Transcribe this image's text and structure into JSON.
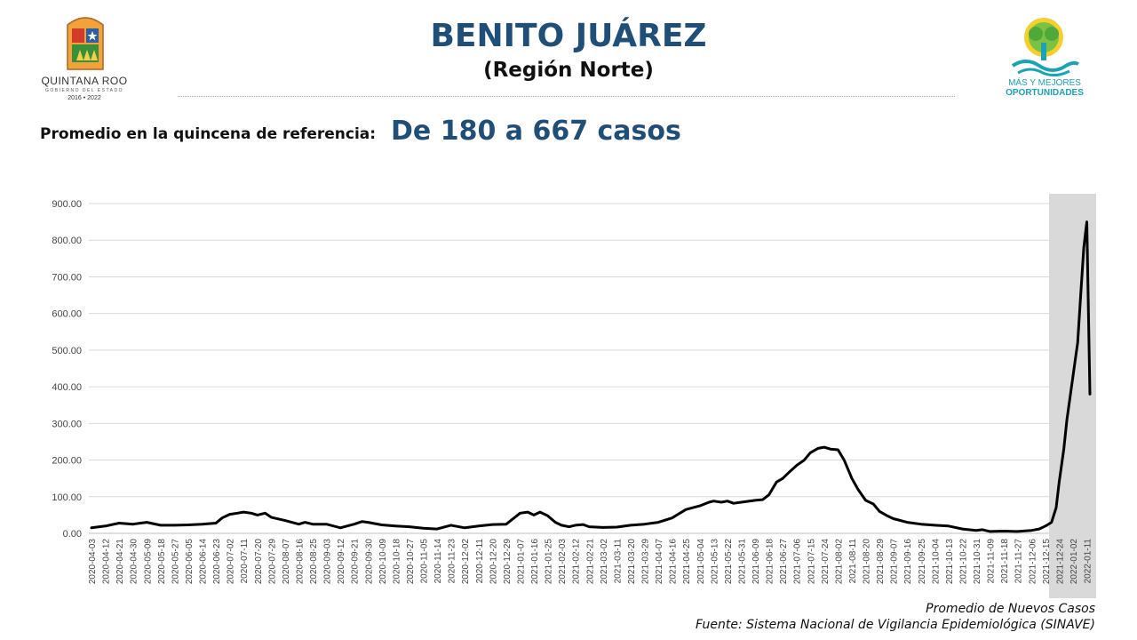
{
  "header": {
    "title": "BENITO JUÁREZ",
    "subtitle": "(Región Norte)",
    "left_logo": {
      "state": "QUINTANA ROO",
      "gov": "GOBIERNO DEL ESTADO",
      "years": "2016 • 2022"
    },
    "right_logo": {
      "line1": "MÁS Y MEJORES",
      "line2": "OPORTUNIDADES"
    }
  },
  "summary": {
    "label": "Promedio en la quincena de referencia:",
    "value": "De 180 a 667 casos"
  },
  "footer": {
    "caption": "Promedio de Nuevos Casos",
    "source": "Fuente: Sistema Nacional de Vigilancia Epidemiológica (SINAVE)"
  },
  "colors": {
    "title": "#1f4e79",
    "line": "#000000",
    "highlight": "#d9d9d9",
    "grid": "#d9d9d9",
    "logo_teal": "#1aa3b8"
  },
  "chart_data": {
    "type": "line",
    "title": "",
    "xlabel": "",
    "ylabel": "",
    "ylim": [
      0,
      900
    ],
    "grid": true,
    "y_ticks": [
      "0.00",
      "100.00",
      "200.00",
      "300.00",
      "400.00",
      "500.00",
      "600.00",
      "700.00",
      "800.00",
      "900.00"
    ],
    "x_ticks": [
      "2020-04-03",
      "2020-04-12",
      "2020-04-21",
      "2020-04-30",
      "2020-05-09",
      "2020-05-18",
      "2020-05-27",
      "2020-06-05",
      "2020-06-14",
      "2020-06-23",
      "2020-07-02",
      "2020-07-11",
      "2020-07-20",
      "2020-07-29",
      "2020-08-07",
      "2020-08-16",
      "2020-08-25",
      "2020-09-03",
      "2020-09-12",
      "2020-09-21",
      "2020-09-30",
      "2020-10-09",
      "2020-10-18",
      "2020-10-27",
      "2020-11-05",
      "2020-11-14",
      "2020-11-23",
      "2020-12-02",
      "2020-12-11",
      "2020-12-20",
      "2020-12-29",
      "2021-01-07",
      "2021-01-16",
      "2021-01-25",
      "2021-02-03",
      "2021-02-12",
      "2021-02-21",
      "2021-03-02",
      "2021-03-11",
      "2021-03-20",
      "2021-03-29",
      "2021-04-07",
      "2021-04-16",
      "2021-04-25",
      "2021-05-04",
      "2021-05-13",
      "2021-05-22",
      "2021-05-31",
      "2021-06-09",
      "2021-06-18",
      "2021-06-27",
      "2021-07-06",
      "2021-07-15",
      "2021-07-24",
      "2021-08-02",
      "2021-08-11",
      "2021-08-20",
      "2021-08-29",
      "2021-09-07",
      "2021-09-16",
      "2021-09-25",
      "2021-10-04",
      "2021-10-13",
      "2021-10-22",
      "2021-10-31",
      "2021-11-09",
      "2021-11-18",
      "2021-11-27",
      "2021-12-06",
      "2021-12-15",
      "2021-12-24",
      "2022-01-02",
      "2022-01-11"
    ],
    "highlight_range": [
      "2021-12-21",
      "2022-01-15"
    ],
    "series": [
      {
        "x": [
          "2020-04-03",
          "2020-04-12",
          "2020-04-21",
          "2020-04-30",
          "2020-05-05",
          "2020-05-09",
          "2020-05-18",
          "2020-05-27",
          "2020-06-05",
          "2020-06-14",
          "2020-06-23",
          "2020-06-27",
          "2020-07-02",
          "2020-07-07",
          "2020-07-11",
          "2020-07-16",
          "2020-07-20",
          "2020-07-25",
          "2020-07-29",
          "2020-08-07",
          "2020-08-16",
          "2020-08-20",
          "2020-08-25",
          "2020-09-03",
          "2020-09-12",
          "2020-09-21",
          "2020-09-26",
          "2020-09-30",
          "2020-10-09",
          "2020-10-18",
          "2020-10-27",
          "2020-11-05",
          "2020-11-14",
          "2020-11-23",
          "2020-12-02",
          "2020-12-11",
          "2020-12-20",
          "2020-12-29",
          "2021-01-07",
          "2021-01-12",
          "2021-01-16",
          "2021-01-20",
          "2021-01-25",
          "2021-01-30",
          "2021-02-03",
          "2021-02-08",
          "2021-02-12",
          "2021-02-17",
          "2021-02-21",
          "2021-03-02",
          "2021-03-11",
          "2021-03-20",
          "2021-03-29",
          "2021-04-07",
          "2021-04-16",
          "2021-04-25",
          "2021-05-04",
          "2021-05-10",
          "2021-05-13",
          "2021-05-18",
          "2021-05-22",
          "2021-05-26",
          "2021-05-31",
          "2021-06-09",
          "2021-06-14",
          "2021-06-18",
          "2021-06-23",
          "2021-06-27",
          "2021-07-02",
          "2021-07-06",
          "2021-07-11",
          "2021-07-15",
          "2021-07-20",
          "2021-07-24",
          "2021-07-28",
          "2021-08-02",
          "2021-08-06",
          "2021-08-11",
          "2021-08-15",
          "2021-08-20",
          "2021-08-25",
          "2021-08-29",
          "2021-09-03",
          "2021-09-07",
          "2021-09-16",
          "2021-09-25",
          "2021-10-04",
          "2021-10-13",
          "2021-10-22",
          "2021-10-31",
          "2021-11-04",
          "2021-11-09",
          "2021-11-18",
          "2021-11-27",
          "2021-12-06",
          "2021-12-11",
          "2021-12-15",
          "2021-12-19",
          "2021-12-22",
          "2021-12-24",
          "2021-12-27",
          "2021-12-29",
          "2022-01-02",
          "2022-01-05",
          "2022-01-07",
          "2022-01-09",
          "2022-01-11",
          "2022-01-13"
        ],
        "y": [
          15,
          20,
          28,
          25,
          28,
          30,
          22,
          22,
          23,
          25,
          28,
          42,
          52,
          55,
          58,
          55,
          50,
          55,
          44,
          35,
          25,
          30,
          25,
          25,
          15,
          25,
          32,
          30,
          23,
          20,
          18,
          14,
          12,
          22,
          15,
          20,
          24,
          25,
          55,
          58,
          50,
          58,
          48,
          30,
          22,
          18,
          22,
          24,
          18,
          16,
          17,
          22,
          25,
          30,
          42,
          65,
          75,
          85,
          88,
          85,
          88,
          82,
          85,
          90,
          92,
          105,
          140,
          150,
          170,
          185,
          200,
          220,
          232,
          235,
          230,
          228,
          200,
          150,
          120,
          90,
          80,
          60,
          48,
          40,
          30,
          25,
          22,
          20,
          12,
          8,
          10,
          5,
          6,
          5,
          8,
          12,
          20,
          30,
          70,
          140,
          230,
          310,
          430,
          520,
          650,
          780,
          850,
          380
        ]
      }
    ]
  }
}
